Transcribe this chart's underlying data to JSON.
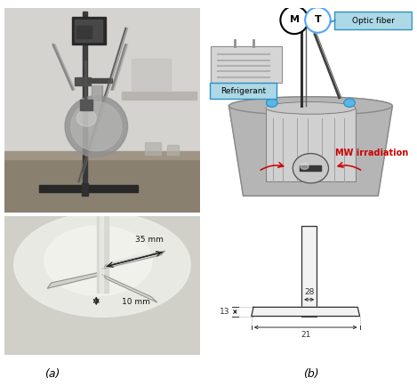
{
  "fig_width": 4.69,
  "fig_height": 4.34,
  "dpi": 100,
  "bg_color": "#ffffff",
  "label_a": "(a)",
  "label_b": "(b)",
  "mw_text": "MW irradiation",
  "mw_color": "#cc0000",
  "optic_fiber_text": "Optic fiber",
  "refrigerant_text": "Refrigerant",
  "m_label": "M",
  "t_label": "T",
  "dim_35": "35 mm",
  "dim_10": "10 mm",
  "dim_28": "28",
  "dim_13": "13",
  "dim_21": "21",
  "box_color_ref": "#add8e6",
  "box_color_optic": "#add8e6",
  "circle_edge_M": "#000000",
  "circle_edge_T": "#4da6ff",
  "photo_main_bg": "#b8b8b8",
  "photo_detail_bg": "#dcdcd4"
}
